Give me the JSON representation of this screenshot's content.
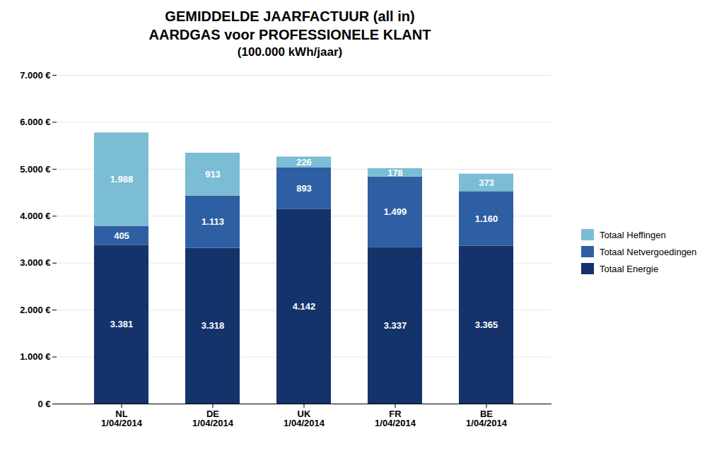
{
  "chart_data": {
    "type": "bar",
    "stacked": true,
    "title": "GEMIDDELDE JAARFACTUUR (all in)",
    "subtitle": [
      "AARDGAS voor PROFESSIONELE KLANT",
      "(100.000 kWh/jaar)"
    ],
    "categories": [
      "NL",
      "DE",
      "UK",
      "FR",
      "BE"
    ],
    "annotations": [
      {
        "category": "NL",
        "text": "1/04/2014"
      },
      {
        "category": "DE",
        "text": "1/04/2014"
      },
      {
        "category": "UK",
        "text": "1/04/2014"
      },
      {
        "category": "FR",
        "text": "1/04/2014"
      },
      {
        "category": "BE",
        "text": "1/04/2014"
      }
    ],
    "series": [
      {
        "name": "Totaal Energie",
        "color": "#14336b",
        "values": [
          3381,
          3318,
          4142,
          3337,
          3365
        ],
        "value_labels": [
          "3.381",
          "3.318",
          "4.142",
          "3.337",
          "3.365"
        ]
      },
      {
        "name": "Totaal Netvergoedingen",
        "color": "#2e5fa3",
        "values": [
          405,
          1113,
          893,
          1499,
          1160
        ],
        "value_labels": [
          "405",
          "1.113",
          "893",
          "1.499",
          "1.160"
        ]
      },
      {
        "name": "Totaal Heffingen",
        "color": "#7bbdd4",
        "values": [
          1988,
          913,
          226,
          178,
          373
        ],
        "value_labels": [
          "1.988",
          "913",
          "226",
          "178",
          "373"
        ]
      }
    ],
    "ylim": [
      0,
      7000
    ],
    "yticks": [
      {
        "value": 0,
        "label": "0 €"
      },
      {
        "value": 1000,
        "label": "1.000 €"
      },
      {
        "value": 2000,
        "label": "2.000 €"
      },
      {
        "value": 3000,
        "label": "3.000 €"
      },
      {
        "value": 4000,
        "label": "4.000 €"
      },
      {
        "value": 5000,
        "label": "5.000 €"
      },
      {
        "value": 6000,
        "label": "6.000 €"
      },
      {
        "value": 7000,
        "label": "7.000 €"
      }
    ],
    "grid": true,
    "legend": "right",
    "data_labels": true
  }
}
